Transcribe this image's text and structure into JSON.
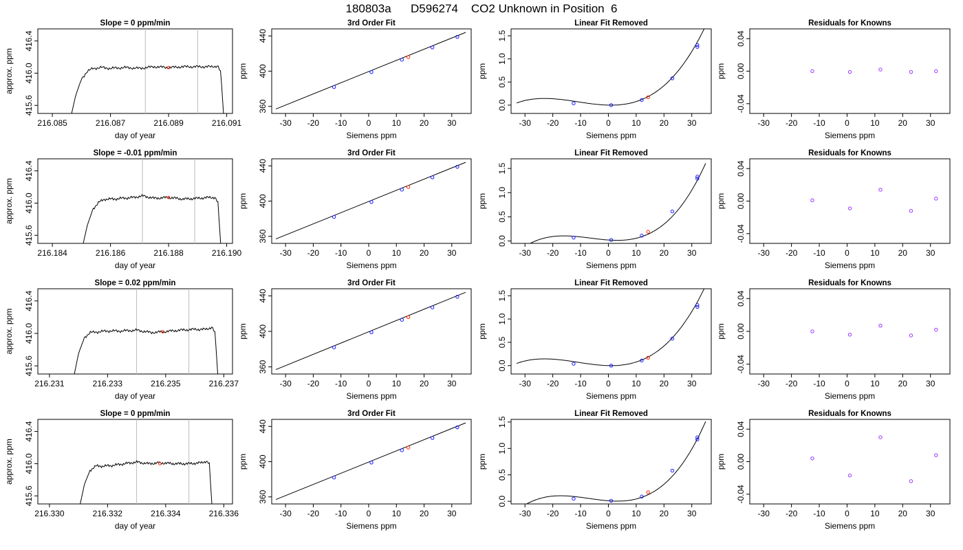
{
  "title": "180803a      D596274    CO2 Unknown in Position  6",
  "colors": {
    "axis": "#000000",
    "vline": "#bbbbbb",
    "known": "#1a1aff",
    "unknown": "#ff2200",
    "resid_fill": "#9933ff"
  },
  "chart_data": [
    {
      "type": "line",
      "title": "Slope =  0  ppm/min",
      "xlabel": "day of year",
      "ylabel": "approx. ppm",
      "xlim": [
        216.0845,
        216.0912
      ],
      "ylim": [
        415.5,
        416.55
      ],
      "xticks": [
        "216.085",
        "216.087",
        "216.089",
        "216.091"
      ],
      "yticks": [
        "415.6",
        "416.0",
        "416.4"
      ],
      "vlines": [
        216.0882,
        216.09
      ],
      "series": [
        {
          "x": [
            216.0856,
            216.0858,
            216.086,
            216.0862,
            216.0864,
            216.0867,
            216.087,
            216.0875,
            216.088,
            216.0885,
            216.089,
            216.0895,
            216.09,
            216.0905,
            216.0907,
            216.0908,
            216.0909
          ],
          "y": [
            415.4,
            415.72,
            415.93,
            416.02,
            416.06,
            416.07,
            416.06,
            416.07,
            416.06,
            416.08,
            416.07,
            416.08,
            416.08,
            416.08,
            416.09,
            416.0,
            415.45
          ]
        }
      ],
      "marker": {
        "x": 216.089,
        "y": 416.07
      }
    },
    {
      "type": "scatter",
      "title": "3rd Order Fit",
      "xlabel": "Siemens ppm",
      "ylabel": "ppm",
      "xlim": [
        -35,
        37
      ],
      "ylim": [
        352,
        448
      ],
      "xticks": [
        -30,
        -20,
        -10,
        0,
        10,
        20,
        30
      ],
      "yticks": [
        360,
        400,
        440
      ],
      "known": [
        [
          -12.5,
          382
        ],
        [
          1,
          399
        ],
        [
          12,
          413
        ],
        [
          23,
          427
        ],
        [
          32,
          439
        ]
      ],
      "unknown": [
        [
          14.3,
          416
        ]
      ],
      "fit_line": [
        [
          -33.5,
          357
        ],
        [
          35,
          444
        ]
      ]
    },
    {
      "type": "scatter",
      "title": "Linear Fit Removed",
      "xlabel": "Siemens ppm",
      "ylabel": "ppm",
      "xlim": [
        -35,
        37
      ],
      "ylim": [
        -0.18,
        1.65
      ],
      "xticks": [
        -30,
        -20,
        -10,
        0,
        10,
        20,
        30
      ],
      "yticks": [
        "0.0",
        "0.5",
        "1.0",
        "1.5"
      ],
      "known": [
        [
          -12.5,
          0.04
        ],
        [
          1,
          0.0
        ],
        [
          12,
          0.11
        ],
        [
          23,
          0.58
        ],
        [
          32,
          1.3
        ],
        [
          32,
          1.26
        ]
      ],
      "unknown": [
        [
          14.3,
          0.17
        ]
      ],
      "curve": {
        "a": 0.0,
        "b": -0.0014,
        "c": 0.0007,
        "d": 2.12e-05
      }
    },
    {
      "type": "scatter",
      "title": "Residuals for Knowns",
      "xlabel": "Siemens ppm",
      "ylabel": "ppm",
      "xlim": [
        -35,
        37
      ],
      "ylim": [
        -0.052,
        0.052
      ],
      "xticks": [
        -30,
        -20,
        -10,
        0,
        10,
        20,
        30
      ],
      "yticks": [
        "-0.04",
        "0.00",
        "0.04"
      ],
      "points": [
        [
          -12.5,
          0.0
        ],
        [
          1,
          -0.001
        ],
        [
          12,
          0.002
        ],
        [
          23,
          -0.001
        ],
        [
          32,
          0.0
        ]
      ]
    },
    {
      "type": "line",
      "title": "Slope =  -0.01  ppm/min",
      "xlabel": "day of year",
      "ylabel": "approx. ppm",
      "xlim": [
        216.1835,
        216.1902
      ],
      "ylim": [
        415.5,
        416.55
      ],
      "xticks": [
        "216.184",
        "216.186",
        "216.188",
        "216.190"
      ],
      "yticks": [
        "415.6",
        "416.0",
        "416.4"
      ],
      "vlines": [
        216.1871,
        216.1889
      ],
      "series": [
        {
          "x": [
            216.185,
            216.1852,
            216.1854,
            216.1856,
            216.1858,
            216.1861,
            216.1864,
            216.1868,
            216.1871,
            216.1875,
            216.188,
            216.1885,
            216.189,
            216.1894,
            216.1896,
            216.1897,
            216.1898
          ],
          "y": [
            415.4,
            415.72,
            415.93,
            416.01,
            416.05,
            416.05,
            416.06,
            416.07,
            416.09,
            416.06,
            416.07,
            416.05,
            416.06,
            416.07,
            416.07,
            416.0,
            415.45
          ]
        }
      ],
      "marker": {
        "x": 216.188,
        "y": 416.07
      }
    },
    {
      "type": "scatter",
      "title": "3rd Order Fit",
      "xlabel": "Siemens ppm",
      "ylabel": "ppm",
      "xlim": [
        -35,
        37
      ],
      "ylim": [
        352,
        448
      ],
      "xticks": [
        -30,
        -20,
        -10,
        0,
        10,
        20,
        30
      ],
      "yticks": [
        360,
        400,
        440
      ],
      "known": [
        [
          -12.5,
          382
        ],
        [
          1,
          399
        ],
        [
          12,
          413
        ],
        [
          23,
          427
        ],
        [
          32,
          439
        ]
      ],
      "unknown": [
        [
          14.3,
          416
        ]
      ],
      "fit_line": [
        [
          -33.5,
          357
        ],
        [
          35,
          444
        ]
      ]
    },
    {
      "type": "scatter",
      "title": "Linear Fit Removed",
      "xlabel": "Siemens ppm",
      "ylabel": "ppm",
      "xlim": [
        -35,
        37
      ],
      "ylim": [
        -0.05,
        1.7
      ],
      "xticks": [
        -30,
        -20,
        -10,
        0,
        10,
        20,
        30
      ],
      "yticks": [
        "0.0",
        "0.5",
        "1.0",
        "1.5"
      ],
      "known": [
        [
          -12.5,
          0.07
        ],
        [
          1,
          0.02
        ],
        [
          12,
          0.11
        ],
        [
          23,
          0.61
        ],
        [
          32,
          1.33
        ],
        [
          32,
          1.29
        ]
      ],
      "unknown": [
        [
          14.3,
          0.19
        ]
      ],
      "curve": {
        "a": 0.02,
        "b": -0.004,
        "c": 0.0005,
        "d": 2.6e-05
      }
    },
    {
      "type": "scatter",
      "title": "Residuals for Knowns",
      "xlabel": "Siemens ppm",
      "ylabel": "ppm",
      "xlim": [
        -35,
        37
      ],
      "ylim": [
        -0.052,
        0.052
      ],
      "xticks": [
        -30,
        -20,
        -10,
        0,
        10,
        20,
        30
      ],
      "yticks": [
        "-0.04",
        "0.00",
        "0.04"
      ],
      "points": [
        [
          -12.5,
          0.001
        ],
        [
          1,
          -0.009
        ],
        [
          12,
          0.014
        ],
        [
          23,
          -0.012
        ],
        [
          32,
          0.003
        ]
      ]
    },
    {
      "type": "line",
      "title": "Slope =  0.02  ppm/min",
      "xlabel": "day of year",
      "ylabel": "approx. ppm",
      "xlim": [
        216.2306,
        216.2373
      ],
      "ylim": [
        415.5,
        416.55
      ],
      "xticks": [
        "216.231",
        "216.233",
        "216.235",
        "216.237"
      ],
      "yticks": [
        "415.6",
        "416.0",
        "416.4"
      ],
      "vlines": [
        216.234,
        216.2358
      ],
      "series": [
        {
          "x": [
            216.2318,
            216.232,
            216.2322,
            216.2324,
            216.2327,
            216.233,
            216.2335,
            216.234,
            216.2345,
            216.2349,
            216.2355,
            216.236,
            216.2364,
            216.2366,
            216.2367,
            216.2368
          ],
          "y": [
            415.4,
            415.75,
            415.95,
            416.01,
            416.02,
            416.03,
            416.03,
            416.04,
            416.01,
            416.02,
            416.04,
            416.05,
            416.05,
            416.08,
            416.0,
            415.45
          ]
        }
      ],
      "marker": {
        "x": 216.2349,
        "y": 416.02
      }
    },
    {
      "type": "scatter",
      "title": "3rd Order Fit",
      "xlabel": "Siemens ppm",
      "ylabel": "ppm",
      "xlim": [
        -35,
        37
      ],
      "ylim": [
        352,
        448
      ],
      "xticks": [
        -30,
        -20,
        -10,
        0,
        10,
        20,
        30
      ],
      "yticks": [
        360,
        400,
        440
      ],
      "known": [
        [
          -12.5,
          382
        ],
        [
          1,
          399
        ],
        [
          12,
          413
        ],
        [
          23,
          427
        ],
        [
          32,
          439
        ]
      ],
      "unknown": [
        [
          14.3,
          416
        ]
      ],
      "fit_line": [
        [
          -33.5,
          357
        ],
        [
          35,
          444
        ]
      ]
    },
    {
      "type": "scatter",
      "title": "Linear Fit Removed",
      "xlabel": "Siemens ppm",
      "ylabel": "ppm",
      "xlim": [
        -35,
        37
      ],
      "ylim": [
        -0.18,
        1.65
      ],
      "xticks": [
        -30,
        -20,
        -10,
        0,
        10,
        20,
        30
      ],
      "yticks": [
        "0.0",
        "0.5",
        "1.0",
        "1.5"
      ],
      "known": [
        [
          -12.5,
          0.04
        ],
        [
          1,
          0.0
        ],
        [
          12,
          0.11
        ],
        [
          23,
          0.58
        ],
        [
          32,
          1.3
        ],
        [
          32,
          1.26
        ]
      ],
      "unknown": [
        [
          14.3,
          0.17
        ]
      ],
      "curve": {
        "a": 0.0,
        "b": -0.0014,
        "c": 0.0007,
        "d": 2.12e-05
      }
    },
    {
      "type": "scatter",
      "title": "Residuals for Knowns",
      "xlabel": "Siemens ppm",
      "ylabel": "ppm",
      "xlim": [
        -35,
        37
      ],
      "ylim": [
        -0.052,
        0.052
      ],
      "points": [
        [
          -12.5,
          0.0
        ],
        [
          1,
          -0.004
        ],
        [
          12,
          0.007
        ],
        [
          23,
          -0.005
        ],
        [
          32,
          0.002
        ]
      ],
      "xticks": [
        -30,
        -20,
        -10,
        0,
        10,
        20,
        30
      ],
      "yticks": [
        "-0.04",
        "0.00",
        "0.04"
      ]
    },
    {
      "type": "line",
      "title": "Slope =  0  ppm/min",
      "xlabel": "day of year",
      "ylabel": "approx. ppm",
      "xlim": [
        216.3296,
        216.3363
      ],
      "ylim": [
        415.5,
        416.55
      ],
      "xticks": [
        "216.330",
        "216.332",
        "216.334",
        "216.336"
      ],
      "yticks": [
        "415.6",
        "416.0",
        "416.4"
      ],
      "vlines": [
        216.333,
        216.3348
      ],
      "series": [
        {
          "x": [
            216.331,
            216.3312,
            216.3314,
            216.3316,
            216.3319,
            216.3322,
            216.3326,
            216.333,
            216.3334,
            216.3338,
            216.3343,
            216.3348,
            216.3352,
            216.3354,
            216.3355,
            216.3356
          ],
          "y": [
            415.4,
            415.74,
            415.92,
            415.97,
            415.97,
            415.98,
            416.0,
            416.02,
            416.0,
            416.01,
            416.0,
            416.0,
            416.01,
            416.03,
            416.0,
            415.45
          ]
        }
      ],
      "marker": {
        "x": 216.3338,
        "y": 416.0
      }
    },
    {
      "type": "scatter",
      "title": "3rd Order Fit",
      "xlabel": "Siemens ppm",
      "ylabel": "ppm",
      "xlim": [
        -35,
        37
      ],
      "ylim": [
        352,
        448
      ],
      "xticks": [
        -30,
        -20,
        -10,
        0,
        10,
        20,
        30
      ],
      "yticks": [
        360,
        400,
        440
      ],
      "known": [
        [
          -12.5,
          382
        ],
        [
          1,
          399
        ],
        [
          12,
          413
        ],
        [
          23,
          427
        ],
        [
          32,
          439
        ]
      ],
      "unknown": [
        [
          14.3,
          416
        ]
      ],
      "fit_line": [
        [
          -33.5,
          357
        ],
        [
          35,
          444
        ]
      ]
    },
    {
      "type": "scatter",
      "title": "Linear Fit Removed",
      "xlabel": "Siemens ppm",
      "ylabel": "ppm",
      "xlim": [
        -35,
        37
      ],
      "ylim": [
        -0.05,
        1.55
      ],
      "xticks": [
        -30,
        -20,
        -10,
        0,
        10,
        20,
        30
      ],
      "yticks": [
        "0.0",
        "0.5",
        "1.0",
        "1.5"
      ],
      "known": [
        [
          -12.5,
          0.05
        ],
        [
          1,
          0.01
        ],
        [
          12,
          0.09
        ],
        [
          23,
          0.58
        ],
        [
          32,
          1.21
        ],
        [
          32,
          1.17
        ]
      ],
      "unknown": [
        [
          14.3,
          0.17
        ]
      ],
      "curve": {
        "a": 0.01,
        "b": -0.004,
        "c": 0.0005,
        "d": 2.4e-05
      }
    },
    {
      "type": "scatter",
      "title": "Residuals for Knowns",
      "xlabel": "Siemens ppm",
      "ylabel": "ppm",
      "xlim": [
        -35,
        37
      ],
      "ylim": [
        -0.052,
        0.052
      ],
      "xticks": [
        -30,
        -20,
        -10,
        0,
        10,
        20,
        30
      ],
      "yticks": [
        "-0.04",
        "0.00",
        "0.04"
      ],
      "points": [
        [
          -12.5,
          0.004
        ],
        [
          1,
          -0.017
        ],
        [
          12,
          0.03
        ],
        [
          23,
          -0.024
        ],
        [
          32,
          0.008
        ]
      ]
    }
  ]
}
